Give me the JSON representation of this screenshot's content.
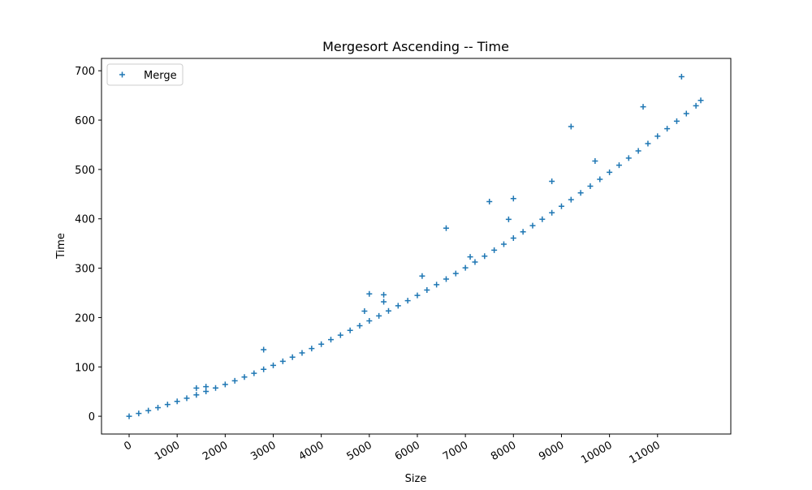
{
  "chart_data": {
    "type": "scatter",
    "title": "Mergesort Ascending -- Time",
    "x_label": "Size",
    "y_label": "Time",
    "legend": "upper left",
    "series": [
      {
        "name": "Merge",
        "color": "#1f77b4",
        "marker": "+",
        "x": [
          0,
          200,
          400,
          600,
          800,
          1000,
          1200,
          1400,
          1600,
          1800,
          2000,
          2200,
          2400,
          2600,
          2800,
          3000,
          3200,
          3400,
          3600,
          3800,
          4000,
          4200,
          4400,
          4600,
          4800,
          5000,
          5200,
          5400,
          5600,
          5800,
          6000,
          6200,
          6400,
          6600,
          6800,
          7000,
          7200,
          7400,
          7600,
          7800,
          8000,
          8200,
          8400,
          8600,
          8800,
          9000,
          9200,
          9400,
          9600,
          9800,
          10000,
          10200,
          10400,
          10600,
          10800,
          11000,
          11200,
          11400,
          11600,
          11800,
          11900,
          2800,
          5000,
          5300,
          5300,
          4900,
          6600,
          7500,
          8000,
          9200,
          10700,
          11500,
          8800,
          7900,
          6100,
          9700,
          1400,
          1600,
          7100
        ],
        "values": [
          0,
          5.7,
          11.5,
          17.5,
          23.7,
          30.1,
          36.6,
          43.3,
          50.2,
          57.2,
          64.4,
          71.8,
          79.4,
          87.1,
          95,
          103.1,
          111.3,
          119.8,
          128.3,
          137.1,
          146,
          155.2,
          164.4,
          173.9,
          183.5,
          193.3,
          203.3,
          213.4,
          223.8,
          234.2,
          244.9,
          255.7,
          266.7,
          277.9,
          289.3,
          300.8,
          312.5,
          324.4,
          336.4,
          348.6,
          361,
          373.6,
          386.3,
          399.1,
          412.2,
          425.5,
          438.9,
          452.5,
          466.2,
          480.2,
          494.3,
          508.6,
          523.1,
          537.6,
          552.4,
          567.4,
          582.6,
          597.9,
          613.3,
          629,
          640,
          135,
          248,
          246,
          232,
          213,
          381,
          435,
          441,
          587,
          627,
          688,
          476,
          399,
          284,
          517,
          57,
          60,
          323
        ]
      }
    ],
    "xlim": [
      -575,
      12525
    ],
    "xticks": [
      0,
      1000,
      2000,
      3000,
      4000,
      5000,
      6000,
      7000,
      8000,
      9000,
      10000,
      11000
    ],
    "ylim": [
      -36,
      725
    ],
    "yticks": [
      0,
      100,
      200,
      300,
      400,
      500,
      600,
      700
    ]
  }
}
